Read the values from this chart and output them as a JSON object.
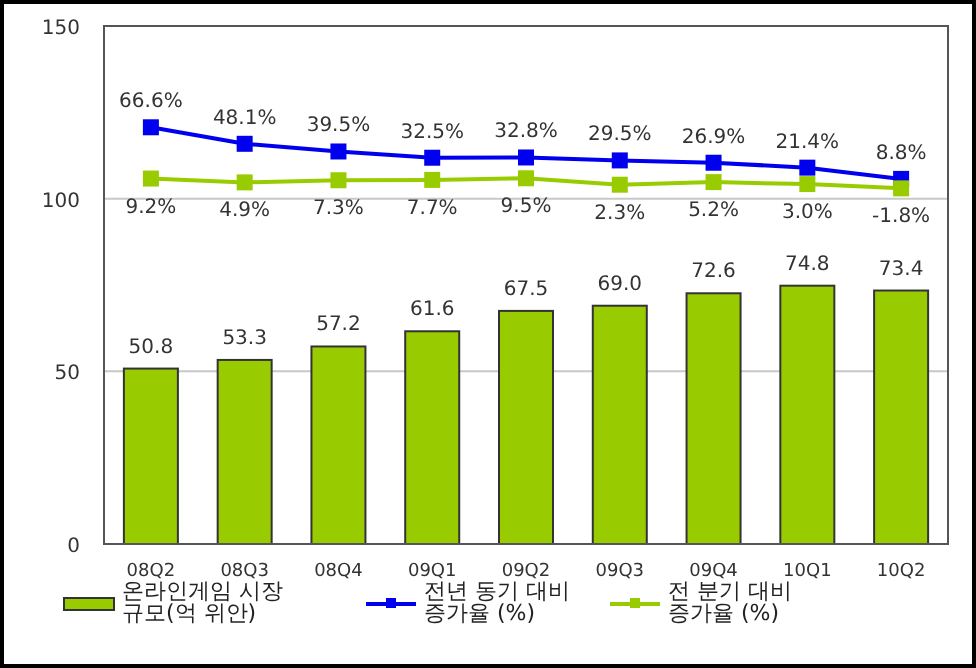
{
  "chart_data": {
    "type": "bar",
    "categories": [
      "08Q2",
      "08Q3",
      "08Q4",
      "09Q1",
      "09Q2",
      "09Q3",
      "09Q4",
      "10Q1",
      "10Q2"
    ],
    "series": [
      {
        "name": "온라인게임 시장\n규모(억 위안)",
        "color": "#99cc00",
        "values": [
          50.8,
          53.3,
          57.2,
          61.6,
          67.5,
          69.0,
          72.6,
          74.8,
          73.4
        ],
        "value_labels": [
          "50.8",
          "53.3",
          "57.2",
          "61.6",
          "67.5",
          "69.0",
          "72.6",
          "74.8",
          "73.4"
        ]
      },
      {
        "name": "전년 동기 대비\n증가율 (%)",
        "type": "line",
        "axis": "y2",
        "color": "#0000ee",
        "marker": "square",
        "values": [
          66.6,
          48.1,
          39.5,
          32.5,
          32.8,
          29.5,
          26.9,
          21.4,
          8.8
        ],
        "value_labels": [
          "66.6%",
          "48.1%",
          "39.5%",
          "32.5%",
          "32.8%",
          "29.5%",
          "26.9%",
          "21.4%",
          "8.8%"
        ]
      },
      {
        "name": "전 분기 대비\n증가율 (%)",
        "type": "line",
        "axis": "y2",
        "color": "#99cc00",
        "marker": "square",
        "values": [
          9.2,
          4.9,
          7.3,
          7.7,
          9.5,
          2.3,
          5.2,
          3.0,
          -1.8
        ],
        "value_labels": [
          "9.2%",
          "4.9%",
          "7.3%",
          "7.7%",
          "9.5%",
          "2.3%",
          "5.2%",
          "3.0%",
          "-1.8%"
        ]
      }
    ],
    "ylim": [
      0,
      150
    ],
    "yticks": [
      0,
      50,
      100,
      150
    ],
    "y2lim": [
      -400,
      180
    ],
    "grid": "y",
    "legend": "bottom"
  }
}
